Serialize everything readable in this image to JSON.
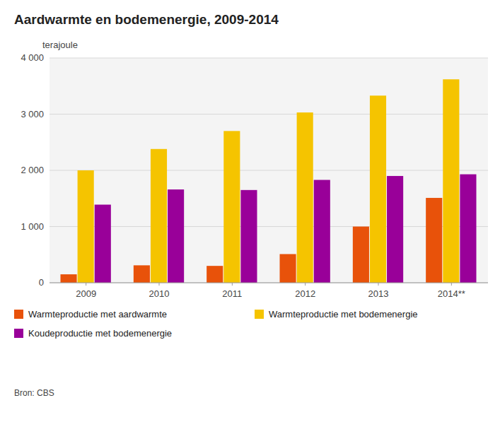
{
  "chart_data": {
    "type": "bar",
    "title": "Aardwarmte en bodemenergie, 2009-2014",
    "ylabel": "terajoule",
    "categories": [
      "2009",
      "2010",
      "2011",
      "2012",
      "2013",
      "2014**"
    ],
    "series": [
      {
        "name": "Warmteproductie met aardwarmte",
        "color": "#E8520A",
        "values": [
          150,
          310,
          300,
          510,
          1000,
          1510
        ]
      },
      {
        "name": "Warmteproductie met bodemenergie",
        "color": "#F5C400",
        "values": [
          2000,
          2380,
          2700,
          3030,
          3330,
          3620
        ]
      },
      {
        "name": "Koudeproductie met bodemenergie",
        "color": "#990099",
        "values": [
          1390,
          1660,
          1650,
          1830,
          1900,
          1930
        ]
      }
    ],
    "ylim": [
      0,
      4000
    ],
    "yticks": [
      0,
      {
        "value": 1000,
        "label": "1 000"
      },
      {
        "value": 2000,
        "label": "2 000"
      },
      {
        "value": 3000,
        "label": "3 000"
      },
      {
        "value": 4000,
        "label": "4 000"
      }
    ],
    "grid": true,
    "legend": "bottom",
    "annotations": [
      "Bron: CBS"
    ]
  }
}
